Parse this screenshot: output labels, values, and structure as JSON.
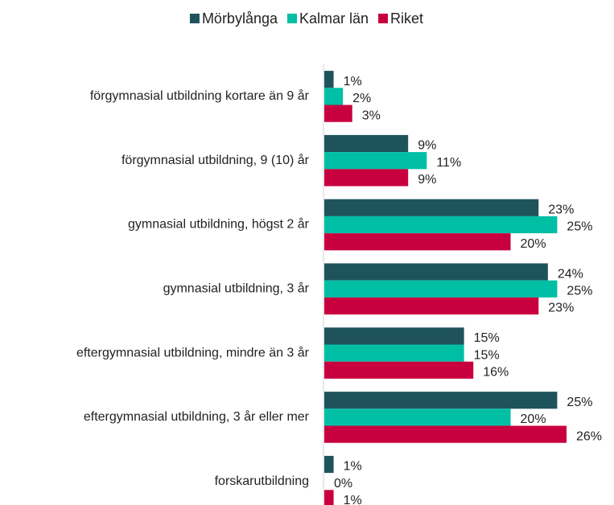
{
  "chart_data": {
    "type": "barh",
    "categories": [
      "förgymnasial utbildning kortare än 9 år",
      "förgymnasial utbildning, 9 (10) år",
      "gymnasial utbildning, högst 2 år",
      "gymnasial utbildning, 3 år",
      "eftergymnasial utbildning, mindre än 3 år",
      "eftergymnasial utbildning, 3 år eller mer",
      "forskarutbildning"
    ],
    "series": [
      {
        "name": "Mörbylånga",
        "color": "#1f535c",
        "values": [
          1,
          9,
          23,
          24,
          15,
          25,
          1
        ],
        "value_labels": [
          "1%",
          "9%",
          "23%",
          "24%",
          "15%",
          "25%",
          "1%"
        ]
      },
      {
        "name": "Kalmar län",
        "color": "#00bfa5",
        "values": [
          2,
          11,
          25,
          25,
          15,
          20,
          0
        ],
        "value_labels": [
          "2%",
          "11%",
          "25%",
          "25%",
          "15%",
          "20%",
          "0%"
        ]
      },
      {
        "name": "Riket",
        "color": "#c8003f",
        "values": [
          3,
          9,
          20,
          23,
          16,
          26,
          1
        ],
        "value_labels": [
          "3%",
          "9%",
          "20%",
          "23%",
          "16%",
          "26%",
          "1%"
        ]
      }
    ],
    "legend": "top"
  }
}
